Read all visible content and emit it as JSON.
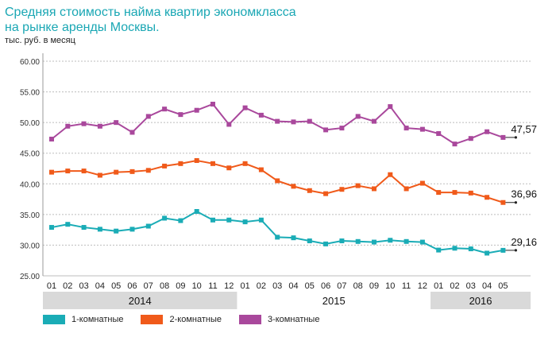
{
  "header": {
    "title_line1": "Средняя стоимость найма квартир экономкласса",
    "title_line2": "на рынке аренды Москвы.",
    "unit": "тыс. руб. в месяц"
  },
  "chart_data": {
    "type": "line",
    "ylim": [
      25,
      60
    ],
    "ytick_labels": [
      "25.00",
      "30.00",
      "35.00",
      "40.00",
      "45.00",
      "50.00",
      "55.00",
      "60.00"
    ],
    "ytick_values": [
      25,
      30,
      35,
      40,
      45,
      50,
      55,
      60
    ],
    "grid": "horizontal-dashed",
    "categories": [
      "01",
      "02",
      "03",
      "04",
      "05",
      "06",
      "07",
      "08",
      "09",
      "10",
      "11",
      "12",
      "01",
      "02",
      "03",
      "04",
      "05",
      "06",
      "07",
      "08",
      "09",
      "10",
      "11",
      "12",
      "01",
      "02",
      "03",
      "04",
      "05"
    ],
    "year_labels": [
      "2014",
      "2015",
      "2016"
    ],
    "series": [
      {
        "name": "1-комнатные",
        "color": "#1aacb6",
        "values": [
          32.9,
          33.4,
          32.9,
          32.6,
          32.3,
          32.6,
          33.1,
          34.4,
          34.0,
          35.5,
          34.1,
          34.1,
          33.8,
          34.1,
          31.3,
          31.2,
          30.7,
          30.2,
          30.7,
          30.6,
          30.5,
          30.8,
          30.6,
          30.5,
          29.2,
          29.5,
          29.4,
          28.7,
          29.16
        ],
        "end_label": "29,16"
      },
      {
        "name": "2-комнатные",
        "color": "#f05a1a",
        "values": [
          41.9,
          42.1,
          42.1,
          41.4,
          41.9,
          42.0,
          42.2,
          42.9,
          43.3,
          43.8,
          43.3,
          42.6,
          43.3,
          42.3,
          40.5,
          39.6,
          38.9,
          38.4,
          39.1,
          39.7,
          39.2,
          41.5,
          39.2,
          40.1,
          38.6,
          38.6,
          38.5,
          37.8,
          36.96
        ],
        "end_label": "36,96"
      },
      {
        "name": "3-комнатные",
        "color": "#a9489c",
        "values": [
          47.3,
          49.4,
          49.8,
          49.4,
          50.0,
          48.4,
          51.0,
          52.2,
          51.3,
          52.0,
          53.0,
          49.7,
          52.4,
          51.2,
          50.2,
          50.1,
          50.2,
          48.8,
          49.1,
          51.0,
          50.2,
          52.6,
          49.1,
          48.9,
          48.2,
          46.5,
          47.4,
          48.5,
          47.57
        ],
        "end_label": "47,57"
      }
    ]
  },
  "legend": [
    {
      "label": "1-комнатные",
      "color": "#1aacb6"
    },
    {
      "label": "2-комнатные",
      "color": "#f05a1a"
    },
    {
      "label": "3-комнатные",
      "color": "#a9489c"
    }
  ]
}
